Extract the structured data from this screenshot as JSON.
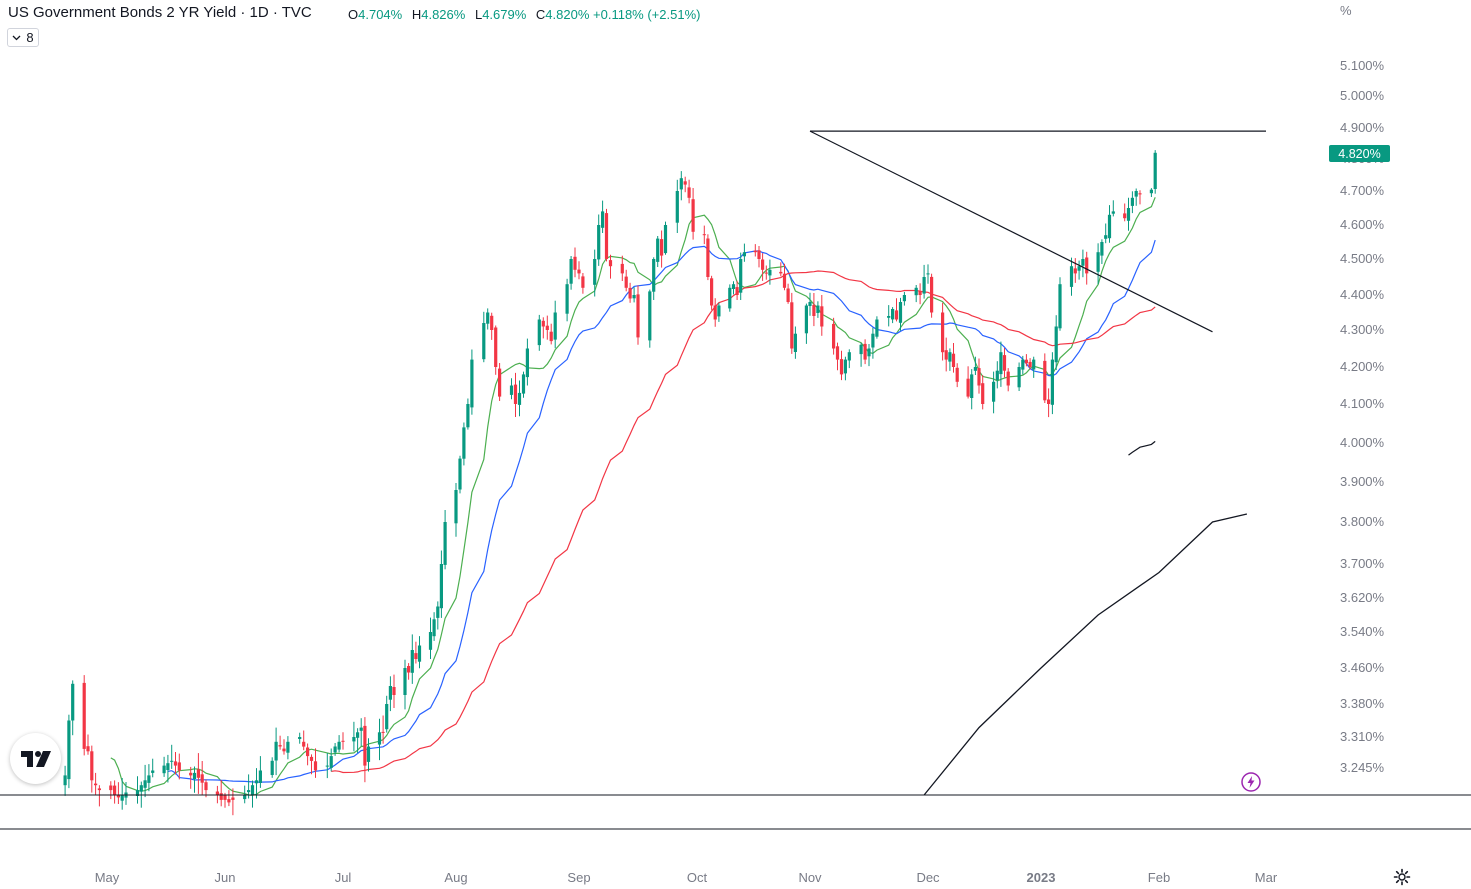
{
  "header": {
    "title": "US Government Bonds 2 YR Yield · 1D · TVC",
    "ohlc": [
      {
        "key": "O",
        "value": "4.704%"
      },
      {
        "key": "H",
        "value": "4.826%"
      },
      {
        "key": "L",
        "value": "4.679%"
      },
      {
        "key": "C",
        "value": "4.820%"
      }
    ],
    "change": "+0.118% (+2.51%)",
    "indicator_count": "8"
  },
  "colors": {
    "up": "#089981",
    "down": "#f23645",
    "ma_fast": "#4caf50",
    "ma_mid": "#2962ff",
    "ma_slow": "#f23645",
    "ma_long": "#131722"
  },
  "chart_data": {
    "type": "candlestick",
    "title": "US Government Bonds 2 YR Yield",
    "y_unit": "%",
    "y_ticks": [
      "5.100%",
      "5.000%",
      "4.900%",
      "4.800%",
      "4.700%",
      "4.600%",
      "4.500%",
      "4.400%",
      "4.300%",
      "4.200%",
      "4.100%",
      "4.000%",
      "3.900%",
      "3.800%",
      "3.700%",
      "3.620%",
      "3.540%",
      "3.460%",
      "3.380%",
      "3.310%",
      "3.245%"
    ],
    "x_ticks": [
      "May",
      "Jun",
      "Jul",
      "Aug",
      "Sep",
      "Oct",
      "Nov",
      "Dec",
      "2023",
      "Feb",
      "Mar"
    ],
    "x_start": "2022-04-20",
    "ylim": [
      3.19,
      5.16
    ],
    "last_price_label": "4.820%",
    "closes": [
      3.23,
      3.345,
      3.425,
      3.285,
      3.28,
      3.22,
      3.21,
      3.2,
      3.2,
      3.19,
      3.185,
      3.19,
      3.195,
      3.2,
      3.21,
      3.22,
      3.23,
      3.24,
      3.25,
      3.255,
      3.26,
      3.25,
      3.24,
      3.23,
      3.235,
      3.225,
      3.215,
      3.2,
      3.19,
      3.18,
      3.18,
      3.175,
      3.18,
      3.19,
      3.2,
      3.21,
      3.22,
      3.24,
      3.26,
      3.3,
      3.29,
      3.28,
      3.3,
      3.31,
      3.29,
      3.27,
      3.26,
      3.24,
      3.25,
      3.27,
      3.29,
      3.3,
      3.3,
      3.31,
      3.32,
      3.33,
      3.25,
      3.29,
      3.32,
      3.32,
      3.38,
      3.42,
      3.4,
      3.46,
      3.45,
      3.5,
      3.48,
      3.51,
      3.54,
      3.57,
      3.6,
      3.7,
      3.8,
      3.88,
      3.96,
      4.04,
      4.1,
      4.22,
      4.32,
      4.35,
      4.3,
      4.2,
      4.12,
      4.15,
      4.1,
      4.13,
      4.18,
      4.25,
      4.33,
      4.31,
      4.3,
      4.27,
      4.35,
      4.43,
      4.5,
      4.47,
      4.46,
      4.42,
      4.5,
      4.6,
      4.64,
      4.5,
      4.48,
      4.46,
      4.42,
      4.39,
      4.4,
      4.28,
      4.41,
      4.5,
      4.56,
      4.51,
      4.6,
      4.7,
      4.74,
      4.72,
      4.68,
      4.58,
      4.57,
      4.45,
      4.37,
      4.33,
      4.37,
      4.42,
      4.43,
      4.4,
      4.5,
      4.52,
      4.52,
      4.5,
      4.47,
      4.46,
      4.47,
      4.46,
      4.42,
      4.38,
      4.25,
      4.29,
      4.37,
      4.38,
      4.34,
      4.37,
      4.31,
      4.25,
      4.22,
      4.18,
      4.22,
      4.24,
      4.26,
      4.22,
      4.25,
      4.29,
      4.33,
      4.34,
      4.36,
      4.33,
      4.38,
      4.4,
      4.42,
      4.4,
      4.45,
      4.46,
      4.35,
      4.24,
      4.22,
      4.24,
      4.2,
      4.16,
      4.12,
      4.18,
      4.2,
      4.15,
      4.1,
      4.16,
      4.19,
      4.24,
      4.19,
      4.15,
      4.2,
      4.22,
      4.21,
      4.2,
      4.22,
      4.11,
      4.1,
      4.22,
      4.31,
      4.43,
      4.48,
      4.46,
      4.48,
      4.5,
      4.46,
      4.52,
      4.55,
      4.57,
      4.63,
      4.64,
      4.62,
      4.65,
      4.68,
      4.7,
      4.69,
      4.704,
      4.82
    ],
    "moving_averages": [
      {
        "period": 9,
        "color": "#4caf50"
      },
      {
        "period": 20,
        "color": "#2962ff"
      },
      {
        "period": 50,
        "color": "#f23645"
      },
      {
        "period": 200,
        "color": "#131722"
      }
    ],
    "long_ma_points": [
      {
        "date": "2022-11-30",
        "value": 3.19
      },
      {
        "date": "2022-12-15",
        "value": 3.33
      },
      {
        "date": "2023-01-01",
        "value": 3.46
      },
      {
        "date": "2023-01-16",
        "value": 3.58
      },
      {
        "date": "2023-02-01",
        "value": 3.68
      },
      {
        "date": "2023-02-15",
        "value": 3.8
      },
      {
        "date": "2023-02-24",
        "value": 3.82
      }
    ],
    "drawings": [
      {
        "type": "trendline",
        "from": {
          "date": "2022-11-01",
          "value": 4.89
        },
        "to": {
          "date": "2023-03-01",
          "value": 4.89
        }
      },
      {
        "type": "trendline",
        "from": {
          "date": "2022-11-01",
          "value": 4.89
        },
        "to": {
          "date": "2023-02-15",
          "value": 4.295
        }
      }
    ]
  }
}
